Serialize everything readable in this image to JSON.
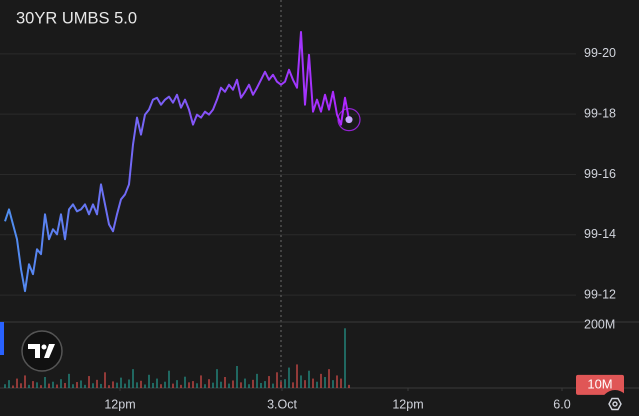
{
  "chart_data": {
    "type": "line",
    "title": "30YR UMBS 5.0",
    "color_start": "#4f8ff0",
    "color_end": "#b026ff",
    "x": [
      0,
      1,
      2,
      3,
      4,
      5,
      6,
      7,
      8,
      9,
      10,
      11,
      12,
      13,
      14,
      15,
      16,
      17,
      18,
      19,
      20,
      21,
      22,
      23,
      24,
      25,
      26,
      27,
      28,
      29,
      30,
      31,
      32,
      33,
      34,
      35,
      36,
      37,
      38,
      39,
      40,
      41,
      42,
      43,
      44,
      45,
      46,
      47,
      48,
      49,
      50,
      51,
      52,
      53,
      54,
      55,
      56,
      57,
      58,
      59,
      60,
      61,
      62,
      63,
      64,
      65,
      66,
      67,
      68,
      69,
      70,
      71,
      72,
      73,
      74,
      75,
      76,
      77,
      78,
      79,
      80,
      81,
      82,
      83,
      84,
      85,
      86
    ],
    "values": [
      99.4514,
      99.4638,
      99.4483,
      99.4329,
      99.4019,
      99.3791,
      99.407,
      99.3967,
      99.4225,
      99.4174,
      99.4587,
      99.4329,
      99.4432,
      99.438,
      99.4587,
      99.4329,
      99.4638,
      99.469,
      99.4618,
      99.4638,
      99.469,
      99.4587,
      99.469,
      99.4587,
      99.4897,
      99.469,
      99.4483,
      99.4411,
      99.4587,
      99.4742,
      99.4793,
      99.4897,
      99.531,
      99.5589,
      99.5413,
      99.562,
      99.5672,
      99.5775,
      99.5795,
      99.5723,
      99.5775,
      99.5806,
      99.5744,
      99.5826,
      99.5692,
      99.5775,
      99.5672,
      99.5517,
      99.562,
      99.5589,
      99.5651,
      99.562,
      99.5672,
      99.5775,
      99.5899,
      99.5857,
      99.593,
      99.5878,
      99.5981,
      99.5795,
      99.5857,
      99.593,
      99.5826,
      99.5899,
      99.5981,
      99.6064,
      99.5981,
      99.6033,
      99.5961,
      99.593,
      99.5961,
      99.6085,
      99.5981,
      99.5899,
      99.6477,
      99.5723,
      99.624,
      99.5651,
      99.5775,
      99.5651,
      99.5826,
      99.5672,
      99.5857,
      99.562,
      99.5517,
      99.5795,
      99.5568
    ],
    "xlim": [
      -1.25,
      142.75
    ],
    "xticks": [
      {
        "value": 28.75,
        "label": "12pm"
      },
      {
        "value": 69.25,
        "label": "3.Oct"
      },
      {
        "value": 100.75,
        "label": "12pm"
      },
      {
        "value": 139.25,
        "label": "6.0"
      }
    ],
    "ylim": [
      99.3471,
      99.6808
    ],
    "yticks": [
      {
        "value": 99.375,
        "label": "99-12"
      },
      {
        "value": 99.4375,
        "label": "99-14"
      },
      {
        "value": 99.5,
        "label": "99-16"
      },
      {
        "value": 99.5625,
        "label": "99-18"
      },
      {
        "value": 99.625,
        "label": "99-20"
      }
    ],
    "grid": true,
    "volume": {
      "values": [
        12,
        25,
        8,
        30,
        15,
        40,
        10,
        22,
        18,
        9,
        35,
        14,
        20,
        11,
        28,
        16,
        45,
        12,
        19,
        24,
        10,
        38,
        15,
        26,
        13,
        50,
        9,
        21,
        17,
        33,
        14,
        27,
        60,
        18,
        23,
        11,
        42,
        16,
        30,
        12,
        20,
        55,
        14,
        25,
        10,
        36,
        18,
        22,
        15,
        40,
        12,
        28,
        17,
        60,
        20,
        35,
        14,
        24,
        70,
        18,
        30,
        12,
        26,
        45,
        16,
        22,
        38,
        14,
        50,
        20,
        28,
        65,
        18,
        75,
        40,
        25,
        55,
        30,
        20,
        45,
        35,
        60,
        25,
        40,
        30,
        190,
        10
      ],
      "up_color": "#26a69a",
      "down_color": "#ef5350",
      "ylim": [
        0,
        210
      ],
      "yticks": [
        {
          "value": 200,
          "label": "200M"
        }
      ],
      "current": {
        "value": 10,
        "label": "10M"
      }
    }
  }
}
